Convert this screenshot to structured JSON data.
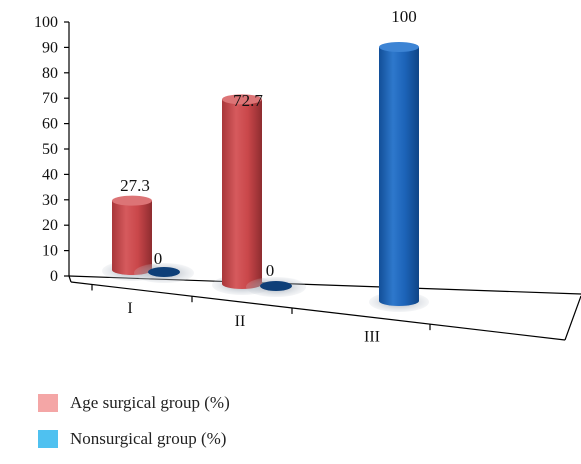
{
  "chart_data": {
    "type": "bar",
    "title": "",
    "xlabel": "",
    "ylabel": "",
    "categories": [
      "I",
      "II",
      "III"
    ],
    "ylim": [
      0,
      100
    ],
    "yticks": [
      0,
      10,
      20,
      30,
      40,
      50,
      60,
      70,
      80,
      90,
      100
    ],
    "grid": false,
    "legend_position": "bottom-left",
    "series": [
      {
        "name": "Age surgical group (%)",
        "values": [
          27.3,
          72.7,
          0
        ],
        "value_labels": [
          "27.3",
          "72.7",
          ""
        ]
      },
      {
        "name": "Nonsurgical group (%)",
        "values": [
          0,
          0,
          100
        ],
        "value_labels": [
          "0",
          "0",
          "100"
        ]
      }
    ],
    "colors": {
      "series_1_body": "#c9474a",
      "series_1_top": "#dc7476",
      "series_1_legend": "#f4a6a6",
      "series_2_body": "#1c63b8",
      "series_2_top": "#3d84d4",
      "series_2_legend": "#4fc1f0",
      "zero_disc": "#0e3f78"
    }
  }
}
